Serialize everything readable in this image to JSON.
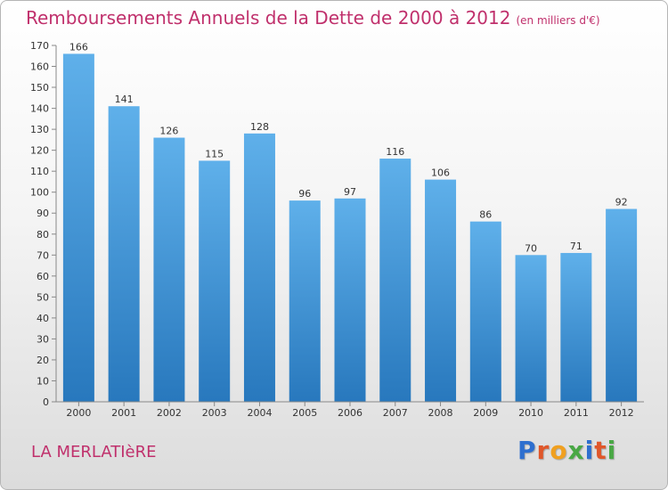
{
  "title": "Remboursements Annuels de la Dette de 2000 à 2012",
  "subtitle": "(en milliers d'€)",
  "commune": "LA MERLATIèRE",
  "logo": {
    "text": "Proxiti",
    "letter_colors": [
      "#2e6fcf",
      "#e0572a",
      "#f0a020",
      "#49a845",
      "#2e6fcf",
      "#e0572a",
      "#49a845"
    ]
  },
  "colors": {
    "title": "#c0306c",
    "bar_top": "#5fb0ea",
    "bar_bottom": "#2878bd"
  },
  "chart_data": {
    "type": "bar",
    "title": "Remboursements Annuels de la Dette de 2000 à 2012",
    "subtitle": "(en milliers d'€)",
    "categories": [
      "2000",
      "2001",
      "2002",
      "2003",
      "2004",
      "2005",
      "2006",
      "2007",
      "2008",
      "2009",
      "2010",
      "2011",
      "2012"
    ],
    "values": [
      166,
      141,
      126,
      115,
      128,
      96,
      97,
      116,
      106,
      86,
      70,
      71,
      92
    ],
    "ylim": [
      0,
      170
    ],
    "yticks": [
      0,
      10,
      20,
      30,
      40,
      50,
      60,
      70,
      80,
      90,
      100,
      110,
      120,
      130,
      140,
      150,
      160,
      170
    ],
    "grid": false,
    "legend": "none"
  }
}
